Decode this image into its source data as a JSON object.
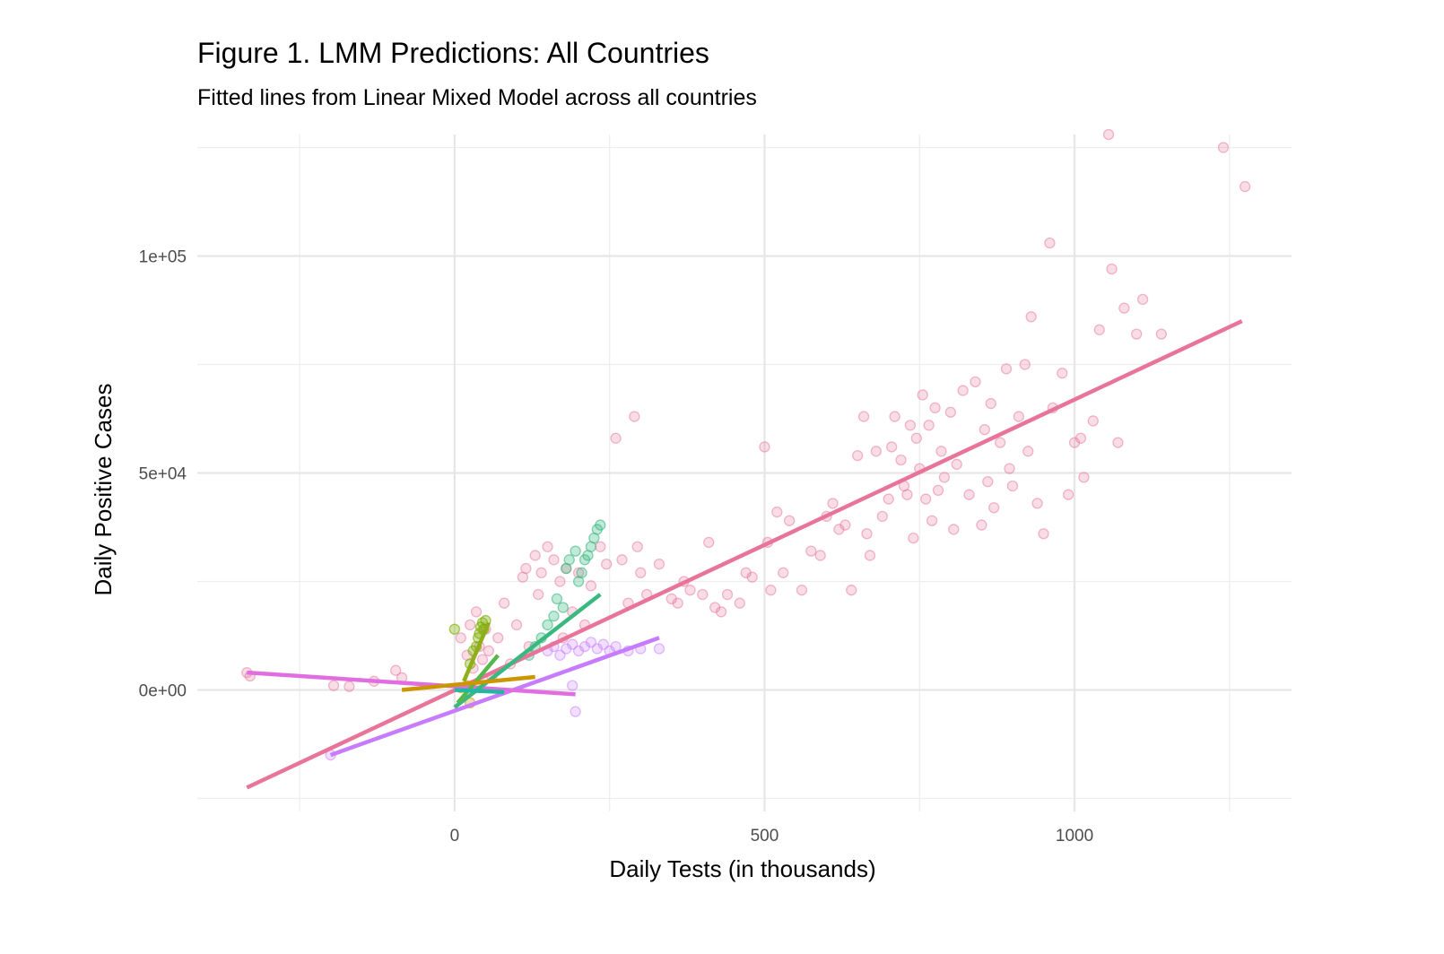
{
  "chart_data": {
    "type": "scatter",
    "title": "Figure 1. LMM Predictions: All Countries",
    "subtitle": "Fitted lines from Linear Mixed Model across all countries",
    "xlabel": "Daily Tests (in thousands)",
    "ylabel": "Daily Positive Cases",
    "xlim": [
      -415,
      1350
    ],
    "ylim": [
      -28000,
      128000
    ],
    "x_ticks": [
      0,
      500,
      1000
    ],
    "x_tick_labels": [
      "0",
      "500",
      "1000"
    ],
    "y_ticks": [
      0,
      50000,
      100000
    ],
    "y_tick_labels": [
      "0e+00",
      "5e+04",
      "1e+05"
    ],
    "grid": true,
    "legend": "none",
    "series": [
      {
        "color": "#e8749a",
        "point_opacity": 0.35,
        "points": [
          [
            -335,
            4000
          ],
          [
            -330,
            3200
          ],
          [
            -195,
            1000
          ],
          [
            -170,
            800
          ],
          [
            -130,
            2000
          ],
          [
            -95,
            4500
          ],
          [
            -85,
            2800
          ],
          [
            10,
            12000
          ],
          [
            20,
            8000
          ],
          [
            25,
            15000
          ],
          [
            30,
            5000
          ],
          [
            35,
            18000
          ],
          [
            40,
            10000
          ],
          [
            45,
            7000
          ],
          [
            50,
            14000
          ],
          [
            55,
            9000
          ],
          [
            60,
            3000
          ],
          [
            70,
            12000
          ],
          [
            80,
            20000
          ],
          [
            90,
            6000
          ],
          [
            100,
            15000
          ],
          [
            110,
            26000
          ],
          [
            115,
            28000
          ],
          [
            120,
            10000
          ],
          [
            130,
            31000
          ],
          [
            135,
            22000
          ],
          [
            140,
            27000
          ],
          [
            150,
            33000
          ],
          [
            160,
            30000
          ],
          [
            170,
            25000
          ],
          [
            175,
            12000
          ],
          [
            180,
            28000
          ],
          [
            190,
            18000
          ],
          [
            200,
            27000
          ],
          [
            210,
            15000
          ],
          [
            220,
            24000
          ],
          [
            235,
            33000
          ],
          [
            245,
            29000
          ],
          [
            260,
            58000
          ],
          [
            270,
            30000
          ],
          [
            280,
            20000
          ],
          [
            290,
            63000
          ],
          [
            295,
            33000
          ],
          [
            300,
            27000
          ],
          [
            310,
            22000
          ],
          [
            330,
            29000
          ],
          [
            350,
            21000
          ],
          [
            360,
            20000
          ],
          [
            370,
            25000
          ],
          [
            380,
            23000
          ],
          [
            400,
            22000
          ],
          [
            410,
            34000
          ],
          [
            420,
            19000
          ],
          [
            430,
            18000
          ],
          [
            440,
            22000
          ],
          [
            460,
            20000
          ],
          [
            470,
            27000
          ],
          [
            480,
            26000
          ],
          [
            500,
            56000
          ],
          [
            505,
            34000
          ],
          [
            510,
            23000
          ],
          [
            520,
            41000
          ],
          [
            530,
            27000
          ],
          [
            540,
            39000
          ],
          [
            560,
            23000
          ],
          [
            575,
            32000
          ],
          [
            590,
            31000
          ],
          [
            600,
            40000
          ],
          [
            610,
            43000
          ],
          [
            620,
            37000
          ],
          [
            630,
            38000
          ],
          [
            640,
            23000
          ],
          [
            650,
            54000
          ],
          [
            660,
            63000
          ],
          [
            665,
            36000
          ],
          [
            670,
            31000
          ],
          [
            680,
            55000
          ],
          [
            690,
            40000
          ],
          [
            700,
            44000
          ],
          [
            705,
            56000
          ],
          [
            710,
            63000
          ],
          [
            720,
            53000
          ],
          [
            725,
            47000
          ],
          [
            730,
            45000
          ],
          [
            735,
            61000
          ],
          [
            740,
            35000
          ],
          [
            745,
            58000
          ],
          [
            750,
            51000
          ],
          [
            755,
            68000
          ],
          [
            760,
            44000
          ],
          [
            765,
            61000
          ],
          [
            770,
            39000
          ],
          [
            775,
            65000
          ],
          [
            780,
            46000
          ],
          [
            785,
            55000
          ],
          [
            790,
            49000
          ],
          [
            800,
            64000
          ],
          [
            805,
            37000
          ],
          [
            810,
            52000
          ],
          [
            820,
            69000
          ],
          [
            830,
            45000
          ],
          [
            840,
            71000
          ],
          [
            850,
            38000
          ],
          [
            855,
            60000
          ],
          [
            860,
            48000
          ],
          [
            865,
            66000
          ],
          [
            870,
            42000
          ],
          [
            880,
            57000
          ],
          [
            890,
            74000
          ],
          [
            895,
            51000
          ],
          [
            900,
            47000
          ],
          [
            910,
            63000
          ],
          [
            920,
            75000
          ],
          [
            925,
            55000
          ],
          [
            930,
            86000
          ],
          [
            940,
            43000
          ],
          [
            950,
            36000
          ],
          [
            960,
            103000
          ],
          [
            965,
            65000
          ],
          [
            980,
            73000
          ],
          [
            990,
            45000
          ],
          [
            1000,
            57000
          ],
          [
            1010,
            58000
          ],
          [
            1015,
            49000
          ],
          [
            1030,
            62000
          ],
          [
            1040,
            83000
          ],
          [
            1055,
            128000
          ],
          [
            1060,
            97000
          ],
          [
            1070,
            57000
          ],
          [
            1080,
            88000
          ],
          [
            1100,
            82000
          ],
          [
            1110,
            90000
          ],
          [
            1140,
            82000
          ],
          [
            1240,
            125000
          ],
          [
            1275,
            116000
          ]
        ]
      },
      {
        "color": "#c77cff",
        "point_opacity": 0.35,
        "points": [
          [
            -200,
            -15000
          ],
          [
            150,
            9000
          ],
          [
            160,
            10000
          ],
          [
            170,
            8000
          ],
          [
            180,
            9500
          ],
          [
            190,
            10500
          ],
          [
            200,
            9000
          ],
          [
            210,
            10000
          ],
          [
            220,
            11000
          ],
          [
            230,
            9500
          ],
          [
            240,
            10500
          ],
          [
            250,
            9000
          ],
          [
            260,
            10000
          ],
          [
            280,
            9000
          ],
          [
            300,
            9500
          ],
          [
            330,
            9500
          ],
          [
            195,
            -5000
          ],
          [
            190,
            1000
          ]
        ]
      },
      {
        "color": "#39b880",
        "point_opacity": 0.45,
        "points": [
          [
            165,
            21000
          ],
          [
            175,
            19000
          ],
          [
            180,
            28000
          ],
          [
            185,
            30000
          ],
          [
            195,
            32000
          ],
          [
            200,
            25000
          ],
          [
            205,
            27000
          ],
          [
            210,
            30000
          ],
          [
            215,
            31000
          ],
          [
            220,
            33000
          ],
          [
            225,
            35000
          ],
          [
            230,
            37000
          ],
          [
            235,
            38000
          ],
          [
            150,
            15000
          ],
          [
            140,
            12000
          ],
          [
            130,
            10000
          ],
          [
            120,
            8000
          ],
          [
            160,
            17000
          ]
        ]
      },
      {
        "color": "#7cae00",
        "point_opacity": 0.5,
        "points": [
          [
            0,
            14000
          ],
          [
            40,
            13000
          ],
          [
            42,
            14500
          ],
          [
            45,
            15500
          ],
          [
            47,
            14000
          ],
          [
            50,
            16000
          ],
          [
            38,
            12000
          ],
          [
            35,
            10000
          ],
          [
            30,
            9000
          ],
          [
            25,
            6000
          ]
        ]
      },
      {
        "color": "#cd9600",
        "point_opacity": 0.45,
        "points": [
          [
            25,
            -3000
          ],
          [
            10,
            500
          ],
          [
            20,
            1000
          ],
          [
            40,
            500
          ]
        ]
      }
    ],
    "fitted_lines": [
      {
        "color": "#e8749a",
        "from": [
          -335,
          -22500
        ],
        "to": [
          1270,
          85000
        ]
      },
      {
        "color": "#c77cff",
        "from": [
          -200,
          -15000
        ],
        "to": [
          330,
          12000
        ]
      },
      {
        "color": "#e06ee0",
        "from": [
          -335,
          4000
        ],
        "to": [
          195,
          -1000
        ]
      },
      {
        "color": "#39b880",
        "from": [
          0,
          -4000
        ],
        "to": [
          235,
          22000
        ]
      },
      {
        "color": "#55b84a",
        "from": [
          5,
          -3000
        ],
        "to": [
          70,
          8000
        ]
      },
      {
        "color": "#8fae1a",
        "from": [
          15,
          2000
        ],
        "to": [
          55,
          15500
        ]
      },
      {
        "color": "#cd9600",
        "from": [
          -85,
          0
        ],
        "to": [
          130,
          3000
        ]
      },
      {
        "color": "#20b8a0",
        "from": [
          0,
          0
        ],
        "to": [
          80,
          -500
        ]
      }
    ]
  }
}
